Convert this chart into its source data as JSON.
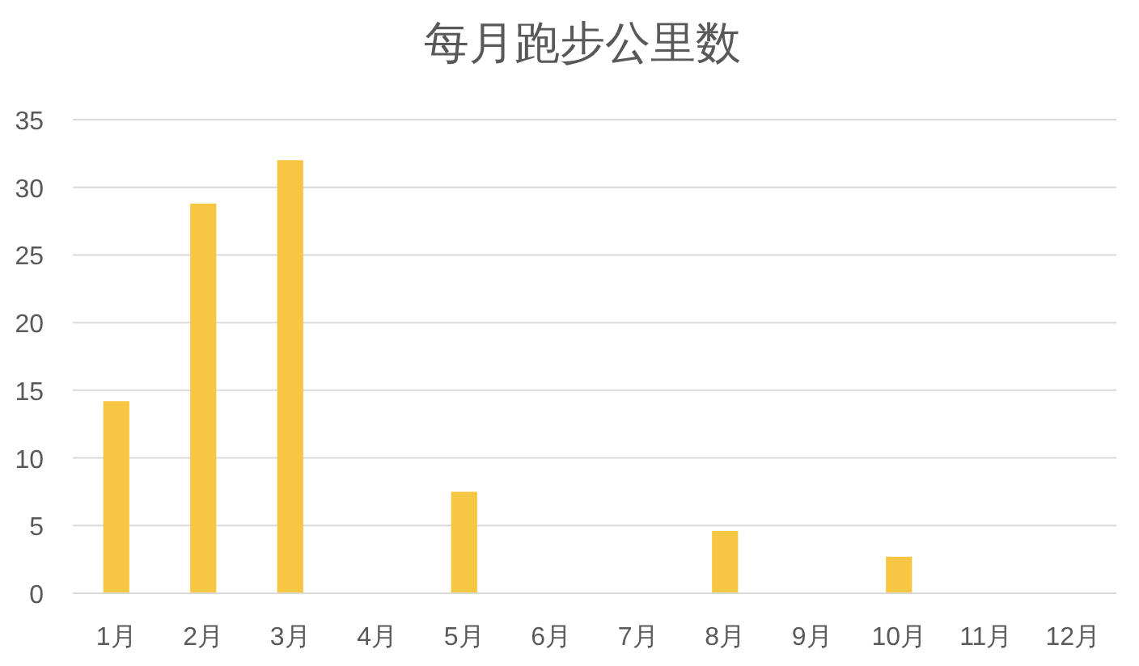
{
  "chart_data": {
    "type": "bar",
    "title": "每月跑步公里数",
    "categories": [
      "1月",
      "2月",
      "3月",
      "4月",
      "5月",
      "6月",
      "7月",
      "8月",
      "9月",
      "10月",
      "11月",
      "12月"
    ],
    "values": [
      14.2,
      28.8,
      32,
      null,
      7.5,
      null,
      null,
      4.6,
      null,
      2.7,
      null,
      null
    ],
    "color": "#f7c744",
    "ylim": [
      0,
      35
    ],
    "yticks": [
      0,
      5,
      10,
      15,
      20,
      25,
      30,
      35
    ],
    "grid": "y"
  }
}
